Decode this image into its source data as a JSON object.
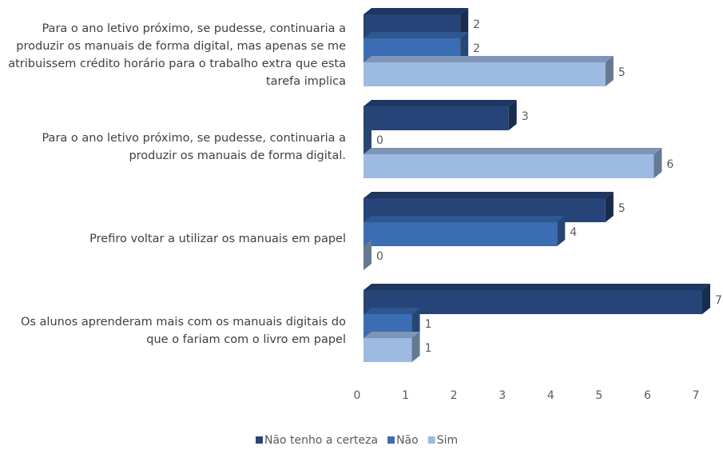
{
  "chart_data": {
    "type": "bar",
    "orientation": "horizontal",
    "categories": [
      "Para o ano letivo próximo, se pudesse, continuaria a produzir os manuais de forma digital, mas apenas se me atribuissem crédito horário para o trabalho extra que esta tarefa implica",
      "Para o ano letivo próximo, se pudesse, continuaria a produzir os manuais de forma digital.",
      "Prefiro voltar a utilizar os manuais em papel",
      "Os alunos aprenderam mais com os manuais digitais do que o fariam com o livro em papel"
    ],
    "series": [
      {
        "name": "Não tenho a certeza",
        "color": "#264478",
        "values": [
          2,
          3,
          5,
          7
        ]
      },
      {
        "name": "Não",
        "color": "#3a6db3",
        "values": [
          2,
          0,
          4,
          1
        ]
      },
      {
        "name": "Sim",
        "color": "#9dbae2",
        "values": [
          5,
          6,
          0,
          1
        ]
      }
    ],
    "xlim": [
      0,
      7
    ],
    "xticks": [
      0,
      1,
      2,
      3,
      4,
      5,
      6,
      7
    ],
    "legend": "bottom"
  }
}
